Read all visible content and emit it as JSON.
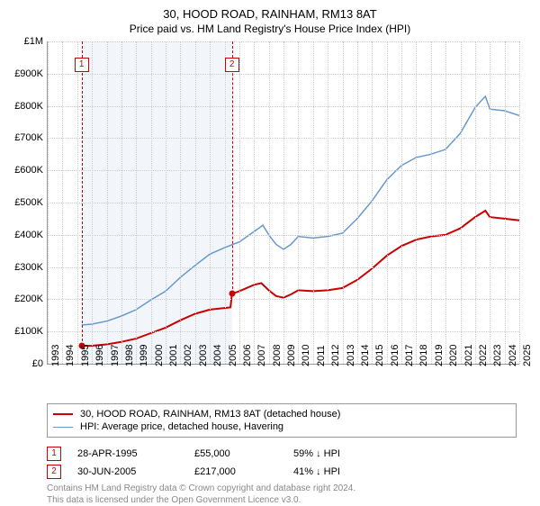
{
  "title": "30, HOOD ROAD, RAINHAM, RM13 8AT",
  "subtitle": "Price paid vs. HM Land Registry's House Price Index (HPI)",
  "chart": {
    "type": "line",
    "background_color": "#ffffff",
    "grid_color": "#cccccc",
    "shaded_band_color": "#f2f6fb",
    "shaded_band_start_year": 1995.3,
    "shaded_band_end_year": 2005.5,
    "ylim": [
      0,
      1000000
    ],
    "yticks": [
      0,
      100000,
      200000,
      300000,
      400000,
      500000,
      600000,
      700000,
      800000,
      900000,
      1000000
    ],
    "ytick_labels": [
      "£0",
      "£100K",
      "£200K",
      "£300K",
      "£400K",
      "£500K",
      "£600K",
      "£700K",
      "£800K",
      "£900K",
      "£1M"
    ],
    "xlim": [
      1993,
      2025
    ],
    "xticks": [
      1993,
      1994,
      1995,
      1996,
      1997,
      1998,
      1999,
      2000,
      2001,
      2002,
      2003,
      2004,
      2005,
      2006,
      2007,
      2008,
      2009,
      2010,
      2011,
      2012,
      2013,
      2014,
      2015,
      2016,
      2017,
      2018,
      2019,
      2020,
      2021,
      2022,
      2023,
      2024,
      2025
    ],
    "label_fontsize": 11,
    "title_fontsize": 13,
    "series": [
      {
        "name": "property",
        "label": "30, HOOD ROAD, RAINHAM, RM13 8AT (detached house)",
        "color": "#cc0000",
        "line_width": 2,
        "points": [
          [
            1995.3,
            55000
          ],
          [
            1996,
            56000
          ],
          [
            1997,
            60000
          ],
          [
            1998,
            68000
          ],
          [
            1999,
            78000
          ],
          [
            2000,
            95000
          ],
          [
            2001,
            112000
          ],
          [
            2002,
            135000
          ],
          [
            2003,
            155000
          ],
          [
            2004,
            168000
          ],
          [
            2005.4,
            175000
          ],
          [
            2005.5,
            217000
          ],
          [
            2006,
            225000
          ],
          [
            2007,
            245000
          ],
          [
            2007.5,
            250000
          ],
          [
            2008,
            228000
          ],
          [
            2008.5,
            210000
          ],
          [
            2009,
            205000
          ],
          [
            2009.5,
            215000
          ],
          [
            2010,
            228000
          ],
          [
            2011,
            225000
          ],
          [
            2012,
            228000
          ],
          [
            2013,
            235000
          ],
          [
            2014,
            260000
          ],
          [
            2015,
            295000
          ],
          [
            2016,
            335000
          ],
          [
            2017,
            365000
          ],
          [
            2018,
            385000
          ],
          [
            2019,
            395000
          ],
          [
            2020,
            400000
          ],
          [
            2021,
            420000
          ],
          [
            2022,
            455000
          ],
          [
            2022.7,
            475000
          ],
          [
            2023,
            455000
          ],
          [
            2024,
            450000
          ],
          [
            2025,
            445000
          ]
        ]
      },
      {
        "name": "hpi",
        "label": "HPI: Average price, detached house, Havering",
        "color": "#6699cc",
        "line_width": 1.5,
        "points": [
          [
            1995.3,
            120000
          ],
          [
            1996,
            123000
          ],
          [
            1997,
            132000
          ],
          [
            1998,
            148000
          ],
          [
            1999,
            168000
          ],
          [
            2000,
            198000
          ],
          [
            2001,
            225000
          ],
          [
            2002,
            268000
          ],
          [
            2003,
            305000
          ],
          [
            2004,
            340000
          ],
          [
            2005,
            360000
          ],
          [
            2006,
            378000
          ],
          [
            2007,
            410000
          ],
          [
            2007.6,
            430000
          ],
          [
            2008,
            400000
          ],
          [
            2008.5,
            370000
          ],
          [
            2009,
            355000
          ],
          [
            2009.5,
            370000
          ],
          [
            2010,
            395000
          ],
          [
            2011,
            390000
          ],
          [
            2012,
            395000
          ],
          [
            2013,
            405000
          ],
          [
            2014,
            450000
          ],
          [
            2015,
            505000
          ],
          [
            2016,
            570000
          ],
          [
            2017,
            615000
          ],
          [
            2018,
            640000
          ],
          [
            2019,
            650000
          ],
          [
            2020,
            665000
          ],
          [
            2021,
            715000
          ],
          [
            2022,
            795000
          ],
          [
            2022.7,
            830000
          ],
          [
            2023,
            790000
          ],
          [
            2024,
            785000
          ],
          [
            2025,
            770000
          ]
        ]
      }
    ],
    "markers": [
      {
        "id": "1",
        "year": 1995.3,
        "value": 55000
      },
      {
        "id": "2",
        "year": 2005.5,
        "value": 217000
      }
    ]
  },
  "legend": {
    "items": [
      {
        "color": "#cc0000",
        "width": 2,
        "label": "30, HOOD ROAD, RAINHAM, RM13 8AT (detached house)"
      },
      {
        "color": "#6699cc",
        "width": 1.5,
        "label": "HPI: Average price, detached house, Havering"
      }
    ]
  },
  "sales": [
    {
      "id": "1",
      "date": "28-APR-1995",
      "price": "£55,000",
      "diff": "59% ↓ HPI"
    },
    {
      "id": "2",
      "date": "30-JUN-2005",
      "price": "£217,000",
      "diff": "41% ↓ HPI"
    }
  ],
  "footer": {
    "line1": "Contains HM Land Registry data © Crown copyright and database right 2024.",
    "line2": "This data is licensed under the Open Government Licence v3.0."
  }
}
